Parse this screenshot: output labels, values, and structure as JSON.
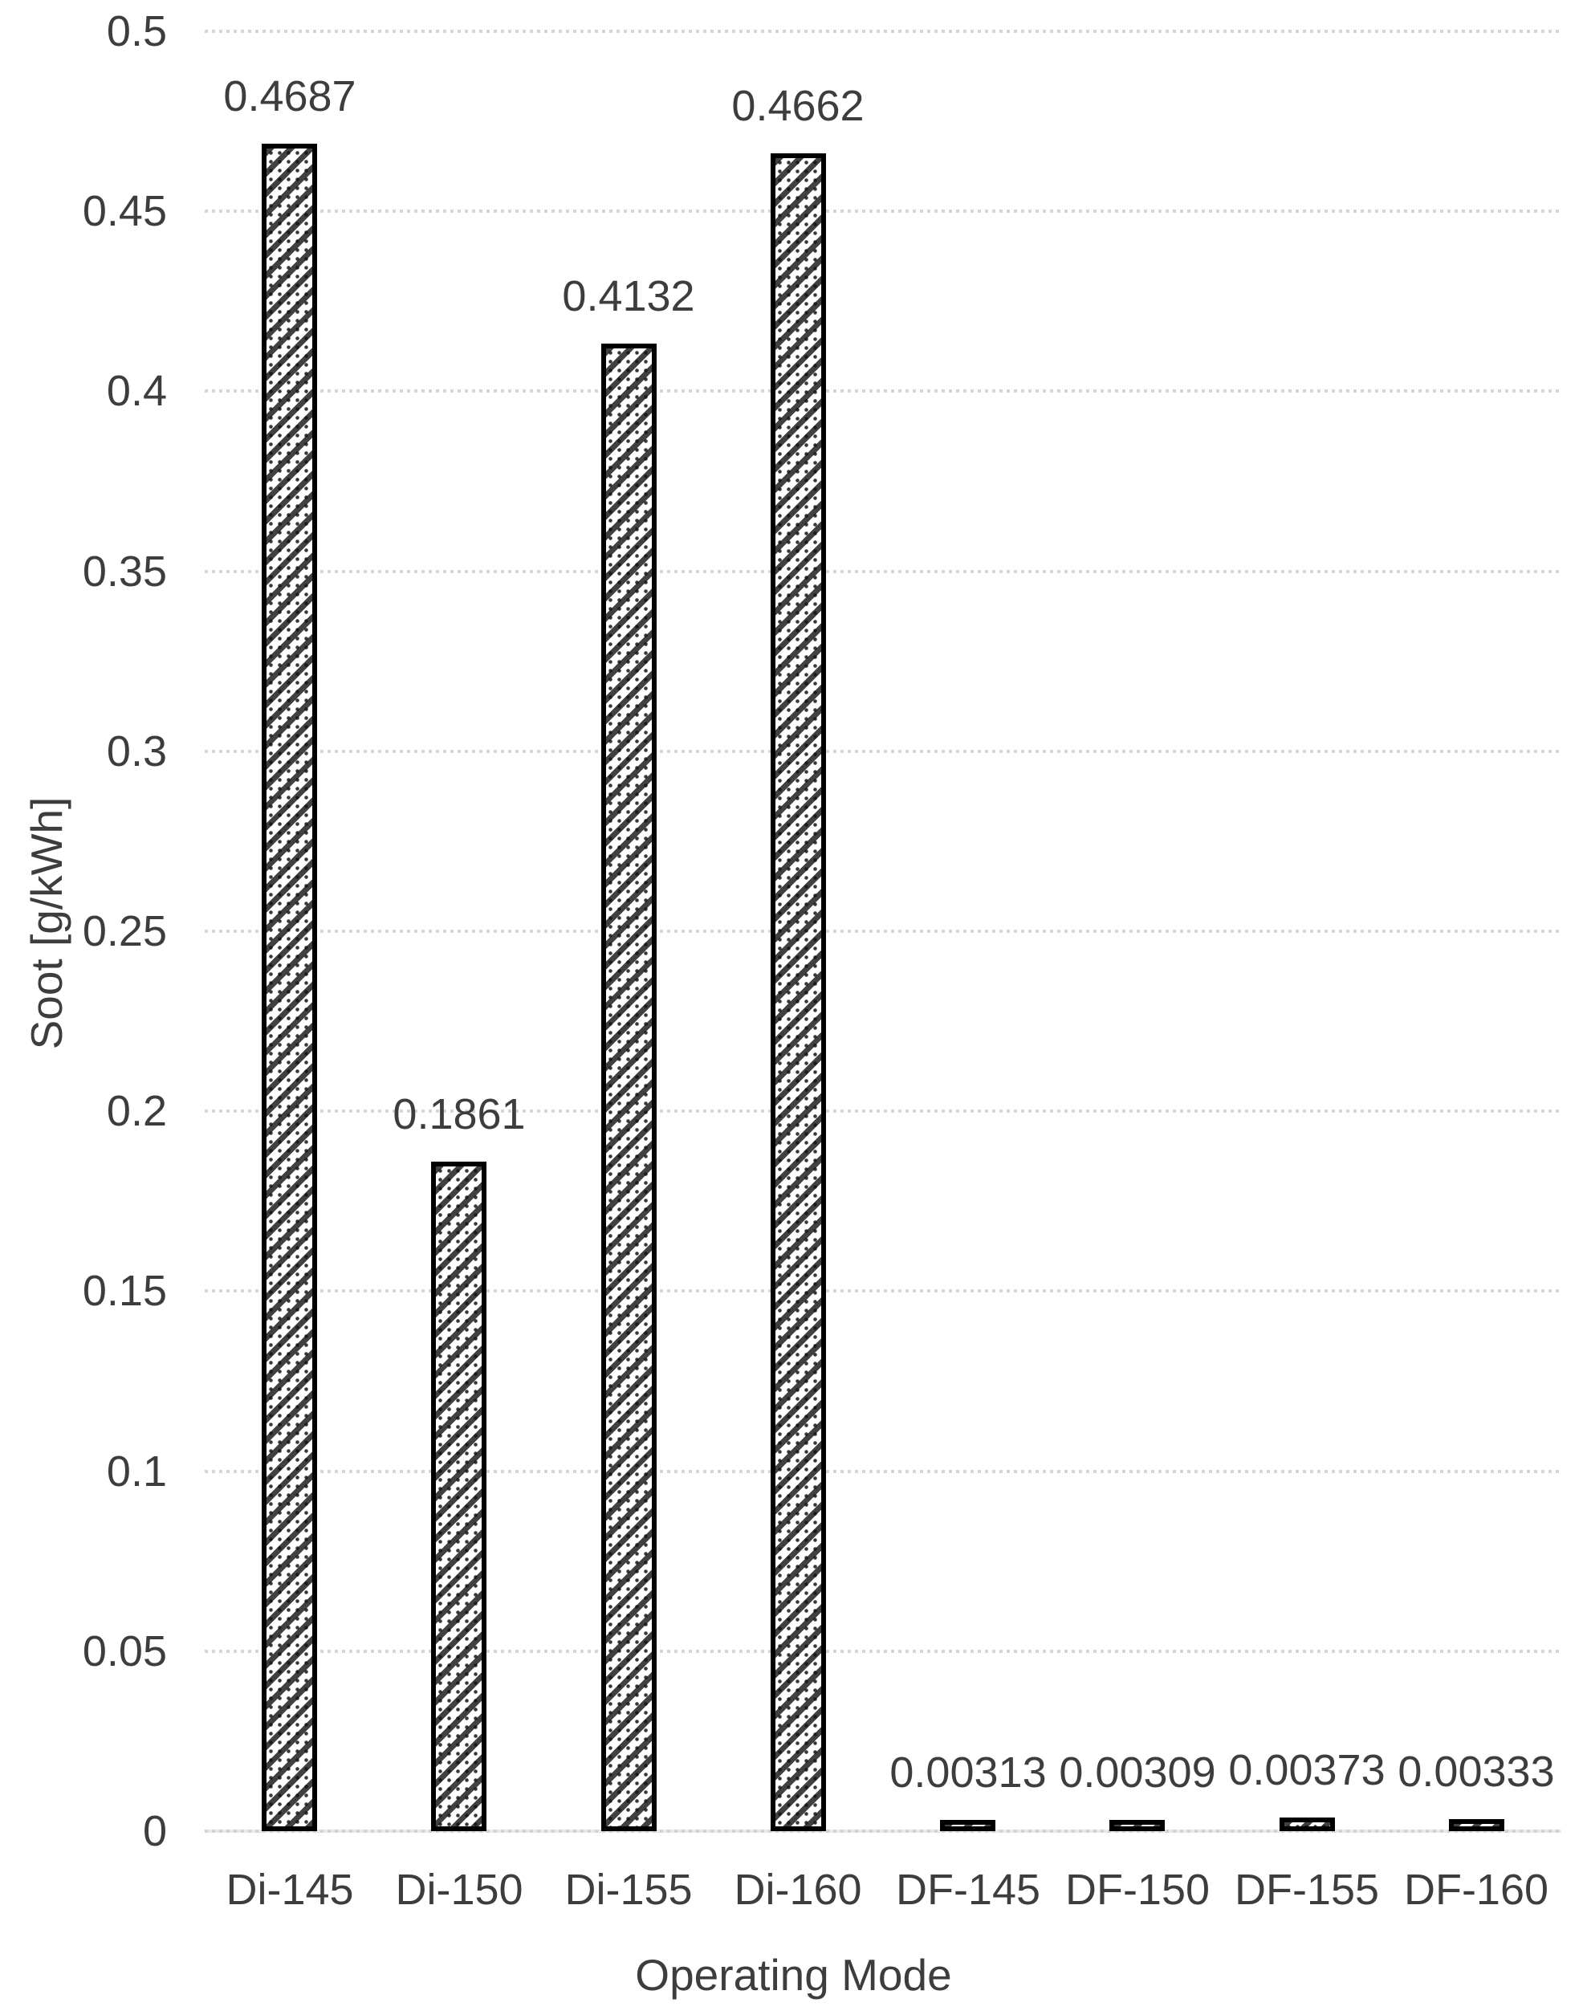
{
  "chart_data": {
    "type": "bar",
    "title": "",
    "xlabel": "Operating Mode",
    "ylabel": "Soot [g/kWh]",
    "categories": [
      "Di-145",
      "Di-150",
      "Di-155",
      "Di-160",
      "DF-145",
      "DF-150",
      "DF-155",
      "DF-160"
    ],
    "values": [
      0.4687,
      0.1861,
      0.4132,
      0.4662,
      0.00313,
      0.00309,
      0.00373,
      0.00333
    ],
    "value_labels": [
      "0.4687",
      "0.1861",
      "0.4132",
      "0.4662",
      "0.00313",
      "0.00309",
      "0.00373",
      "0.00333"
    ],
    "ylim": [
      0,
      0.5
    ],
    "ytick_values": [
      0,
      0.05,
      0.1,
      0.15,
      0.2,
      0.25,
      0.3,
      0.35,
      0.4,
      0.45,
      0.5
    ],
    "ytick_labels": [
      "0",
      "0.05",
      "0.1",
      "0.15",
      "0.2",
      "0.25",
      "0.3",
      "0.35",
      "0.4",
      "0.45",
      "0.5"
    ],
    "grid": "horizontal-dotted",
    "legend_position": "none",
    "bar_style": "diagonal-hatch",
    "colors": {
      "background": "#ffffff",
      "text": "#3d3d3d",
      "gridline": "#d6d6d6",
      "axis_line": "#d2d2d2",
      "bar_border": "#000000",
      "bar_fill": "#ffffff",
      "hatch": "#2c2c2c"
    }
  }
}
